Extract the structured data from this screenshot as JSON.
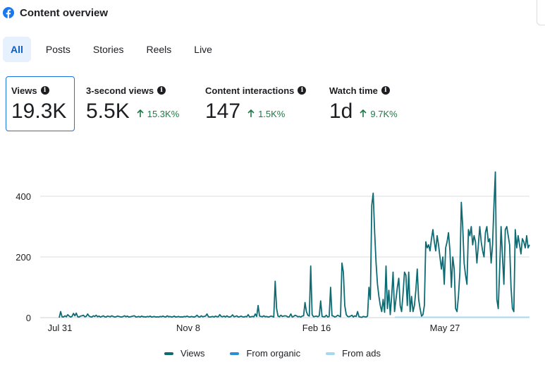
{
  "header": {
    "title": "Content overview",
    "icon": "facebook-logo-icon",
    "brand_color": "#1877f2"
  },
  "tabs": [
    {
      "label": "All",
      "active": true
    },
    {
      "label": "Posts",
      "active": false
    },
    {
      "label": "Stories",
      "active": false
    },
    {
      "label": "Reels",
      "active": false
    },
    {
      "label": "Live",
      "active": false
    }
  ],
  "metrics": [
    {
      "label": "Views",
      "value": "19.3K",
      "delta": "",
      "selected": true
    },
    {
      "label": "3-second views",
      "value": "5.5K",
      "delta": "15.3K%",
      "selected": false
    },
    {
      "label": "Content interactions",
      "value": "147",
      "delta": "1.5K%",
      "selected": false
    },
    {
      "label": "Watch time",
      "value": "1d",
      "delta": "9.7K%",
      "selected": false
    }
  ],
  "colors": {
    "views": "#0f6b73",
    "organic": "#2b8fd6",
    "ads": "#a6d8ef",
    "positive": "#1d7a47",
    "accent": "#1b74e4"
  },
  "chart_data": {
    "type": "line",
    "x_ticks": [
      "Jul 31",
      "Nov 8",
      "Feb 16",
      "May 27"
    ],
    "y_ticks": [
      "0",
      "200",
      "400"
    ],
    "ylim": [
      0,
      450
    ],
    "grid": true,
    "legend_position": "bottom",
    "series": [
      {
        "name": "Views",
        "x_range": [
          "Jul 31",
          "Jul 4"
        ],
        "values": [
          0,
          20,
          3,
          2,
          6,
          3,
          10,
          5,
          2,
          4,
          14,
          6,
          15,
          3,
          2,
          5,
          6,
          8,
          3,
          4,
          12,
          5,
          3,
          2,
          6,
          4,
          8,
          3,
          5,
          2,
          4,
          6,
          3,
          2,
          5,
          4,
          3,
          6,
          4,
          2,
          3,
          5,
          4,
          3,
          2,
          4,
          6,
          3,
          5,
          2,
          3,
          4,
          5,
          6,
          2,
          3,
          4,
          2,
          5,
          3,
          3,
          2,
          4,
          3,
          5,
          2,
          3,
          4,
          2,
          3,
          2,
          4,
          3,
          5,
          3,
          2,
          6,
          3,
          4,
          2,
          3,
          5,
          2,
          3,
          4,
          2,
          3,
          2,
          4,
          3,
          5,
          3,
          2,
          4,
          3,
          2,
          4,
          8,
          3,
          2,
          6,
          3,
          4,
          5,
          12,
          3,
          2,
          3,
          4,
          2,
          5,
          3,
          3,
          10,
          4,
          3,
          5,
          2,
          6,
          3,
          2,
          4,
          9,
          3,
          4,
          6,
          2,
          3,
          5,
          3,
          2,
          4,
          3,
          10,
          2,
          3,
          4,
          3,
          12,
          4,
          40,
          5,
          4,
          3,
          6,
          3,
          4,
          2,
          3,
          5,
          4,
          2,
          120,
          30,
          5,
          3,
          8,
          4,
          5,
          6,
          5,
          2,
          3,
          12,
          2,
          4,
          8,
          6,
          3,
          4,
          2,
          5,
          6,
          50,
          20,
          8,
          5,
          170,
          10,
          3,
          4,
          5,
          3,
          6,
          55,
          4,
          3,
          3,
          8,
          2,
          4,
          100,
          6,
          5,
          2,
          4,
          8,
          5,
          3,
          180,
          150,
          40,
          10,
          4,
          3,
          5,
          8,
          2,
          6,
          4,
          20,
          3,
          2,
          1,
          4,
          3,
          2,
          5,
          100,
          60,
          370,
          410,
          280,
          180,
          110,
          70,
          40,
          20,
          60,
          18,
          170,
          30,
          90,
          10,
          70,
          150,
          20,
          60,
          100,
          130,
          40,
          20,
          80,
          150,
          140,
          40,
          150,
          20,
          70,
          20,
          40,
          90,
          160,
          60,
          30,
          5,
          10,
          40,
          250,
          230,
          240,
          220,
          260,
          290,
          250,
          220,
          270,
          240,
          200,
          160,
          200,
          110,
          230,
          250,
          280,
          220,
          100,
          200,
          160,
          30,
          20,
          70,
          150,
          380,
          300,
          180,
          140,
          110,
          290,
          270,
          300,
          240,
          270,
          250,
          180,
          240,
          300,
          250,
          220,
          200,
          280,
          300,
          250,
          260,
          180,
          240,
          370,
          480,
          60,
          30,
          160,
          300,
          200,
          110,
          290,
          300,
          270,
          240,
          100,
          30,
          20,
          290,
          230,
          270,
          240,
          210,
          260,
          250,
          230,
          270,
          230,
          240
        ]
      },
      {
        "name": "From organic",
        "values": []
      },
      {
        "name": "From ads",
        "values": []
      }
    ]
  }
}
